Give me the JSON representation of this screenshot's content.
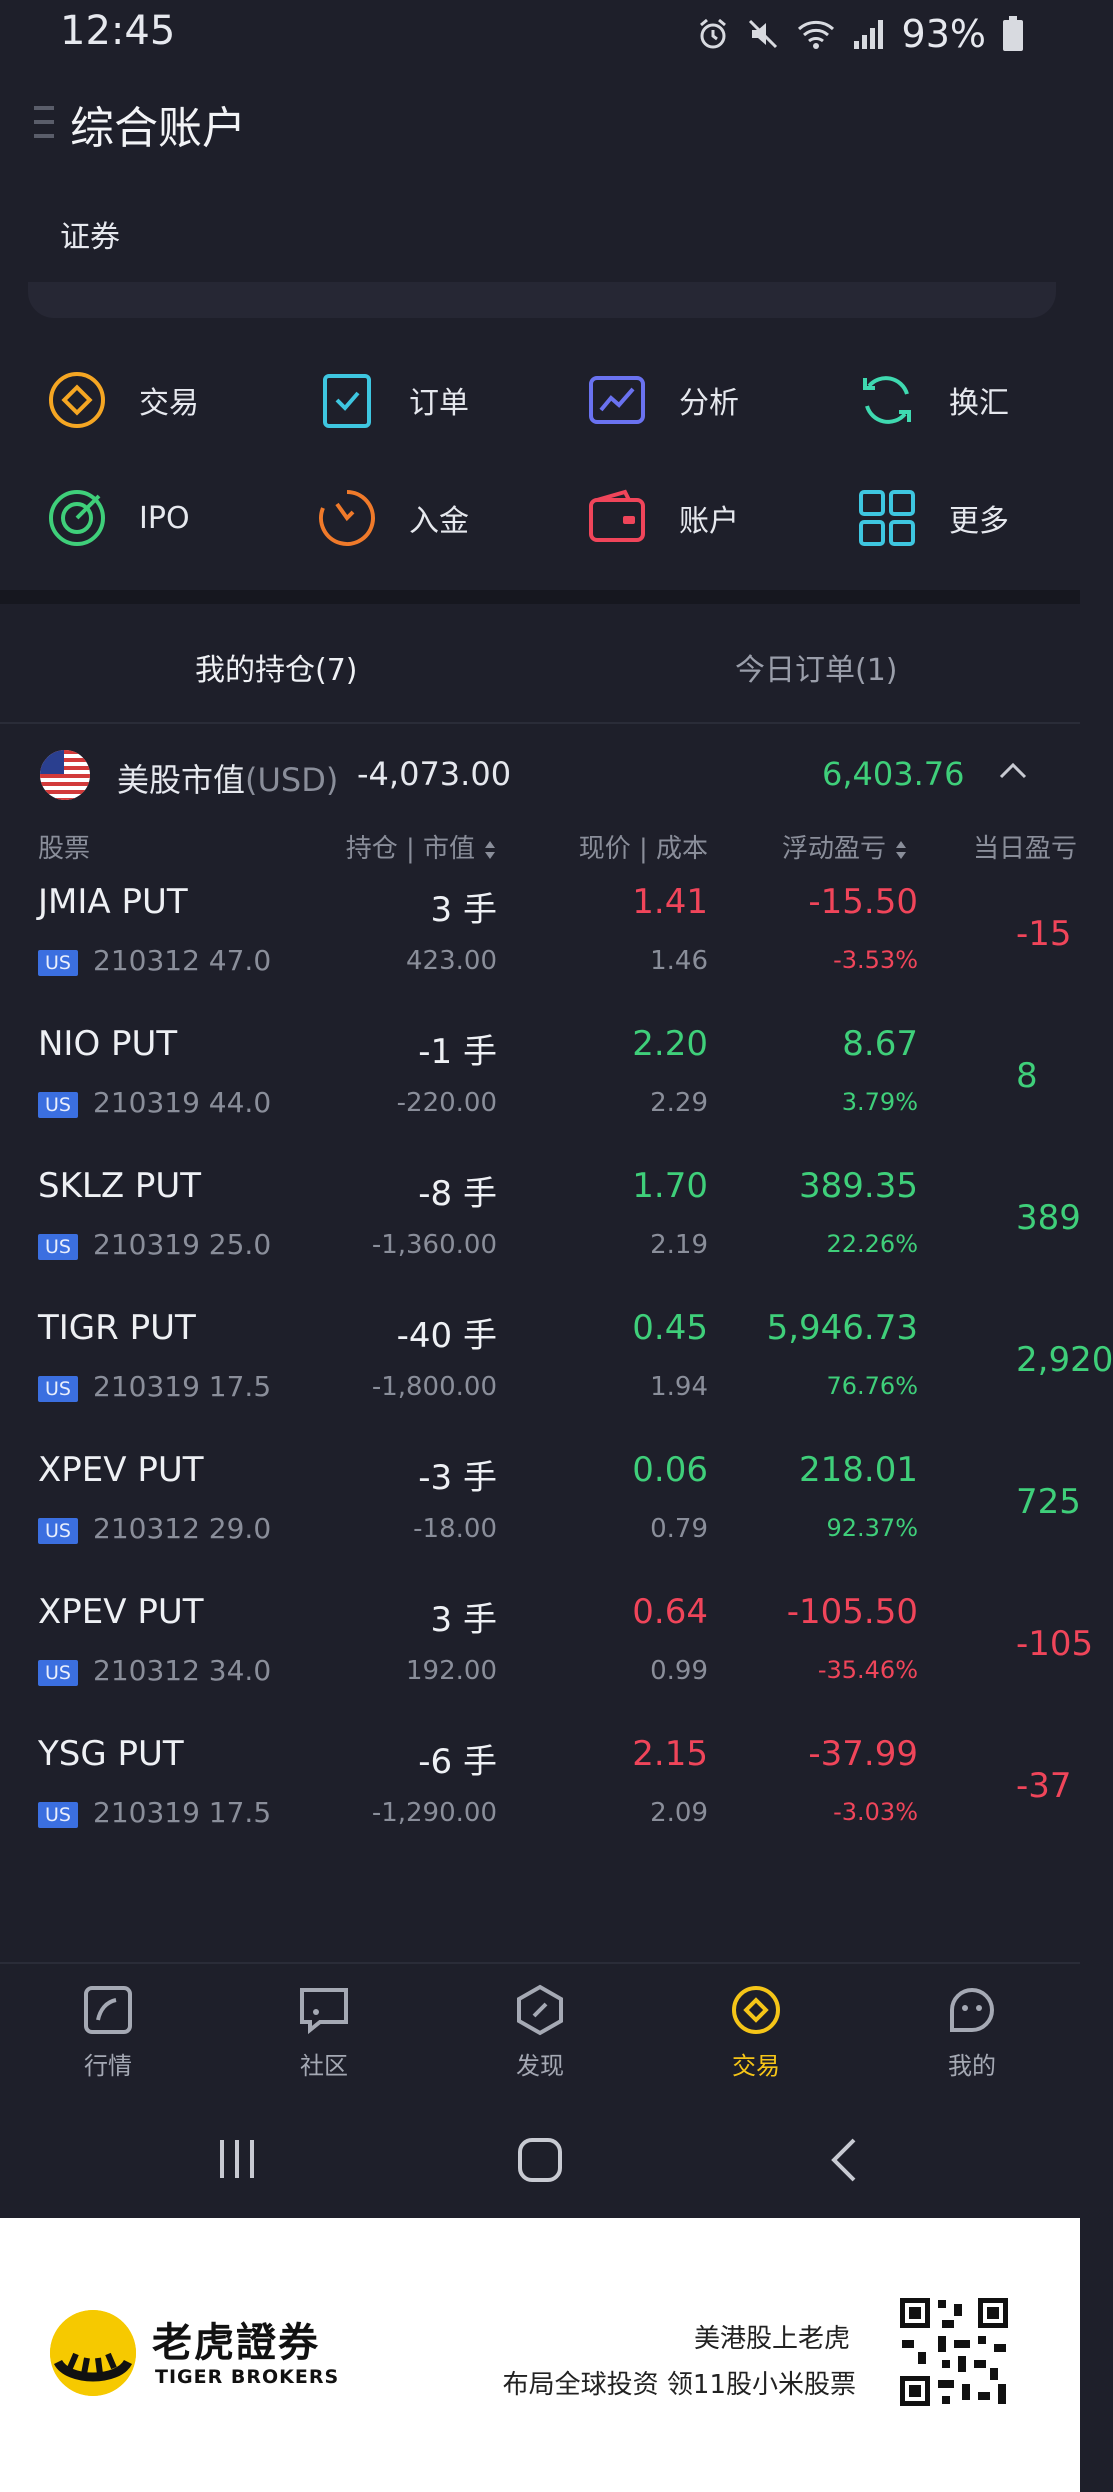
{
  "status_bar": {
    "time": "12:45",
    "battery": "93%"
  },
  "header": {
    "title": "综合账户",
    "tab": "证券"
  },
  "actions": [
    {
      "label": "交易",
      "icon": "trade-icon",
      "color": "#f5a623"
    },
    {
      "label": "订单",
      "icon": "order-icon",
      "color": "#3ec6e0"
    },
    {
      "label": "分析",
      "icon": "analysis-icon",
      "color": "#6a72f0"
    },
    {
      "label": "换汇",
      "icon": "exchange-icon",
      "color": "#3fd9b0"
    },
    {
      "label": "IPO",
      "icon": "ipo-icon",
      "color": "#3fcf7a"
    },
    {
      "label": "入金",
      "icon": "deposit-icon",
      "color": "#f07a2a"
    },
    {
      "label": "账户",
      "icon": "account-icon",
      "color": "#f0455a"
    },
    {
      "label": "更多",
      "icon": "more-icon",
      "color": "#3ec6e0"
    }
  ],
  "holdings_tabs": {
    "positions": "我的持仓(7)",
    "orders": "今日订单(1)"
  },
  "market": {
    "label": "美股市值",
    "currency": "(USD)",
    "value": "-4,073.00",
    "pnl": "6,403.76"
  },
  "columns": {
    "stock": "股票",
    "position": "持仓 | 市值",
    "price": "现价 | 成本",
    "floating_pnl": "浮动盈亏",
    "today_pnl": "当日盈亏"
  },
  "positions": [
    {
      "symbol": "JMIA PUT",
      "badge": "US",
      "contract": "210312 47.0",
      "qty": "3 手",
      "market_value": "423.00",
      "price": "1.41",
      "cost": "1.46",
      "pnl": "-15.50",
      "pnl_pct": "-3.53%",
      "today": "-15",
      "dir": "down"
    },
    {
      "symbol": "NIO PUT",
      "badge": "US",
      "contract": "210319 44.0",
      "qty": "-1 手",
      "market_value": "-220.00",
      "price": "2.20",
      "cost": "2.29",
      "pnl": "8.67",
      "pnl_pct": "3.79%",
      "today": "8",
      "dir": "up"
    },
    {
      "symbol": "SKLZ PUT",
      "badge": "US",
      "contract": "210319 25.0",
      "qty": "-8 手",
      "market_value": "-1,360.00",
      "price": "1.70",
      "cost": "2.19",
      "pnl": "389.35",
      "pnl_pct": "22.26%",
      "today": "389",
      "dir": "up"
    },
    {
      "symbol": "TIGR PUT",
      "badge": "US",
      "contract": "210319 17.5",
      "qty": "-40 手",
      "market_value": "-1,800.00",
      "price": "0.45",
      "cost": "1.94",
      "pnl": "5,946.73",
      "pnl_pct": "76.76%",
      "today": "2,920",
      "dir": "up"
    },
    {
      "symbol": "XPEV PUT",
      "badge": "US",
      "contract": "210312 29.0",
      "qty": "-3 手",
      "market_value": "-18.00",
      "price": "0.06",
      "cost": "0.79",
      "pnl": "218.01",
      "pnl_pct": "92.37%",
      "today": "725",
      "dir": "up"
    },
    {
      "symbol": "XPEV PUT",
      "badge": "US",
      "contract": "210312 34.0",
      "qty": "3 手",
      "market_value": "192.00",
      "price": "0.64",
      "cost": "0.99",
      "pnl": "-105.50",
      "pnl_pct": "-35.46%",
      "today": "-105",
      "dir": "down"
    },
    {
      "symbol": "YSG PUT",
      "badge": "US",
      "contract": "210319 17.5",
      "qty": "-6 手",
      "market_value": "-1,290.00",
      "price": "2.15",
      "cost": "2.09",
      "pnl": "-37.99",
      "pnl_pct": "-3.03%",
      "today": "-37",
      "dir": "down"
    }
  ],
  "bottom_nav": [
    {
      "label": "行情",
      "icon": "quotes-icon"
    },
    {
      "label": "社区",
      "icon": "community-icon"
    },
    {
      "label": "发现",
      "icon": "discover-icon"
    },
    {
      "label": "交易",
      "icon": "trade-nav-icon",
      "active": true
    },
    {
      "label": "我的",
      "icon": "profile-icon"
    }
  ],
  "banner": {
    "brand_cn": "老虎證券",
    "brand_en": "TIGER BROKERS",
    "slogan_line1": "美港股上老虎",
    "slogan_line2": "布局全球投资 领11股小米股票"
  }
}
